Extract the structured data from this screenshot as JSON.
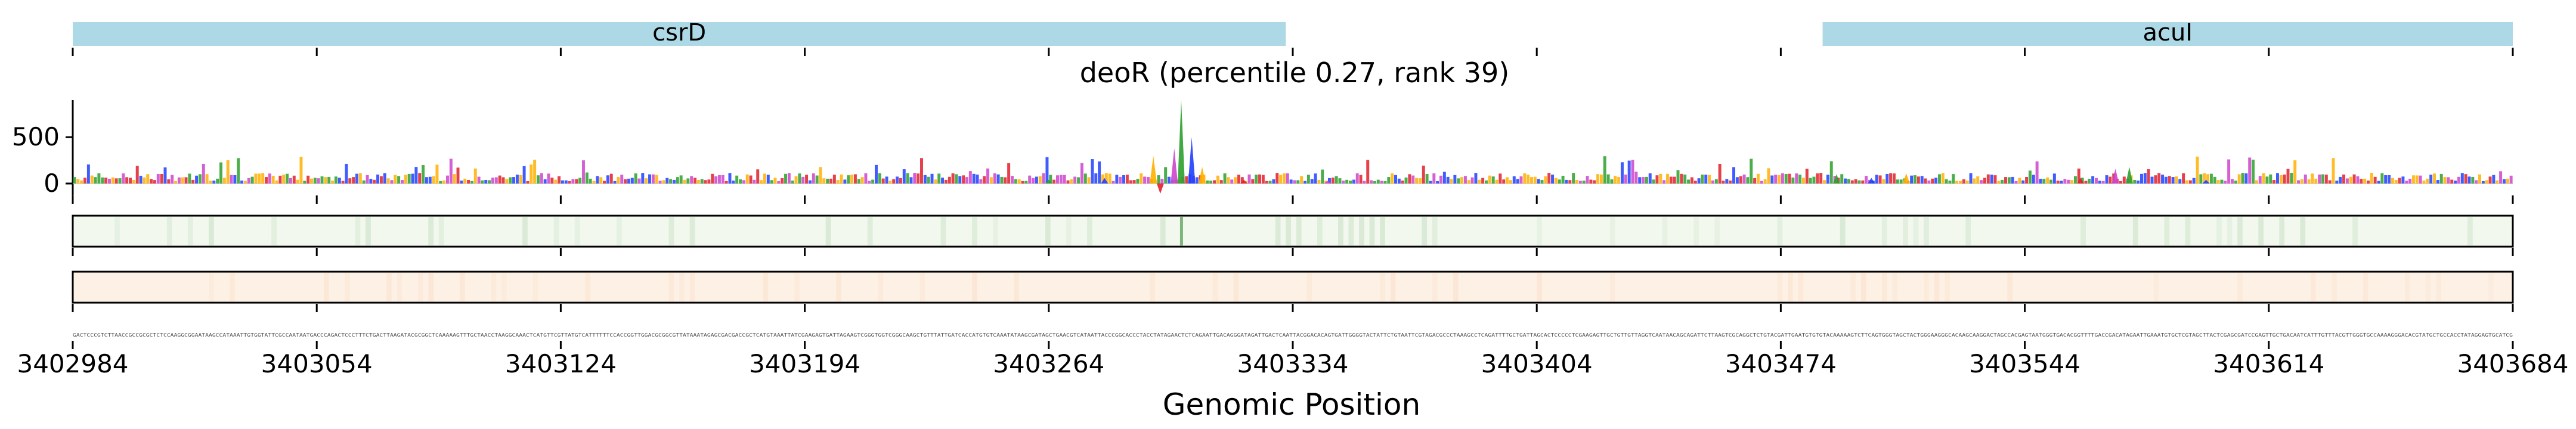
{
  "chart_data": {
    "type": "genome-track",
    "title": "deoR (percentile 0.27, rank 39)",
    "xlabel": "Genomic Position",
    "xlim": [
      3402984,
      3403684
    ],
    "x_ticks": [
      "3402984",
      "3403054",
      "3403124",
      "3403194",
      "3403264",
      "3403334",
      "3403404",
      "3403474",
      "3403544",
      "3403614",
      "3403684"
    ],
    "genes": [
      {
        "name": "csrD",
        "start": 3402984,
        "end": 3403332
      },
      {
        "name": "acuI",
        "start": 3403486,
        "end": 3403684
      }
    ],
    "attribution_track": {
      "y_ticks": [
        "500",
        "0"
      ],
      "ylim": [
        -200,
        900
      ],
      "peaks": [
        {
          "x": 3403264,
          "value": 40
        },
        {
          "x": 3403280,
          "value": 60
        },
        {
          "x": 3403294,
          "value": 300
        },
        {
          "x": 3403296,
          "value": -110
        },
        {
          "x": 3403300,
          "value": 380
        },
        {
          "x": 3403302,
          "value": 900
        },
        {
          "x": 3403305,
          "value": 500
        },
        {
          "x": 3403308,
          "value": 180
        },
        {
          "x": 3403320,
          "value": 40
        },
        {
          "x": 3403344,
          "value": 30
        },
        {
          "x": 3403490,
          "value": 100
        },
        {
          "x": 3403500,
          "value": 60
        },
        {
          "x": 3403510,
          "value": 110
        },
        {
          "x": 3403560,
          "value": 60
        },
        {
          "x": 3403570,
          "value": 160
        },
        {
          "x": 3403574,
          "value": 180
        },
        {
          "x": 3403596,
          "value": 40
        }
      ]
    },
    "heatmap_tracks": [
      {
        "color": "#2e8b2e",
        "highlight_x": 3403302
      },
      {
        "color": "#f4a460",
        "highlight_x": null
      }
    ]
  },
  "colors": {
    "gene": "#add8e6",
    "nucleotide_A": "#2ca02c",
    "nucleotide_C": "#1f3fff",
    "nucleotide_G": "#ffb000",
    "nucleotide_T": "#e0202a",
    "nucleotide_extra": "#cc44cc",
    "track1_bg": "#f2f8ee",
    "track2_bg": "#fdf1e6"
  }
}
